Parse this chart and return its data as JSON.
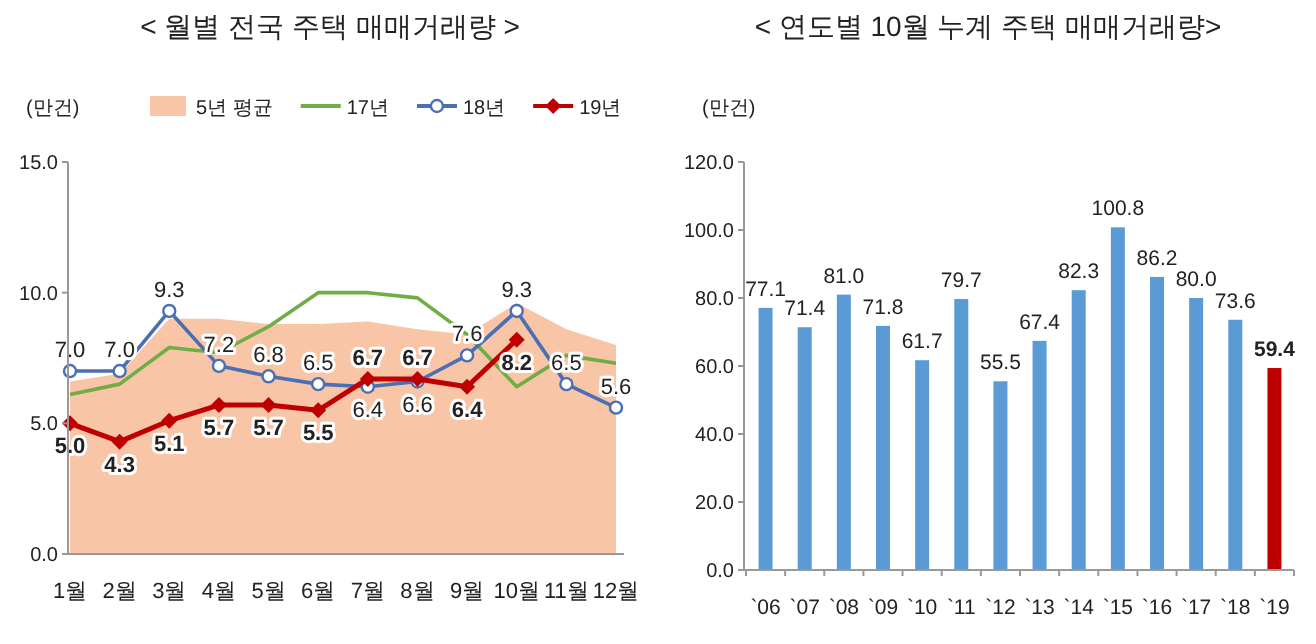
{
  "chart_data": [
    {
      "type": "line",
      "title": "< 월별 전국 주택 매매거래량 >",
      "ylabel": "(만건)",
      "categories": [
        "1월",
        "2월",
        "3월",
        "4월",
        "5월",
        "6월",
        "7월",
        "8월",
        "9월",
        "10월",
        "11월",
        "12월"
      ],
      "ylim": [
        0,
        15
      ],
      "yticks": [
        {
          "value": 0,
          "label": "0.0"
        },
        {
          "value": 5,
          "label": "5.0"
        },
        {
          "value": 10,
          "label": "10.0"
        },
        {
          "value": 15,
          "label": "15.0"
        }
      ],
      "legend": "top",
      "series": [
        {
          "name": "5년 평균",
          "type": "area",
          "color": "#f8c6a6",
          "values": [
            6.6,
            6.9,
            9.0,
            9.0,
            8.8,
            8.8,
            8.9,
            8.6,
            8.4,
            9.6,
            8.6,
            8.0
          ]
        },
        {
          "name": "17년",
          "type": "line",
          "color": "#70ad47",
          "marker": "none",
          "values": [
            6.1,
            6.5,
            7.9,
            7.7,
            8.7,
            10.0,
            10.0,
            9.8,
            8.4,
            6.4,
            7.6,
            7.3
          ]
        },
        {
          "name": "18년",
          "type": "line",
          "color": "#4a6fb5",
          "marker": "circle",
          "values": [
            7.0,
            7.0,
            9.3,
            7.2,
            6.8,
            6.5,
            6.4,
            6.6,
            7.6,
            9.3,
            6.5,
            5.6
          ],
          "value_labels": [
            "7.0",
            "7.0",
            "9.3",
            "7.2",
            "6.8",
            "6.5",
            "6.4",
            "6.6",
            "7.6",
            "9.3",
            "6.5",
            "5.6"
          ]
        },
        {
          "name": "19년",
          "type": "line",
          "color": "#c00000",
          "marker": "diamond",
          "values": [
            5.0,
            4.3,
            5.1,
            5.7,
            5.7,
            5.5,
            6.7,
            6.7,
            6.4,
            8.2,
            null,
            null
          ],
          "value_labels": [
            "**5.0**",
            "**4.3**",
            "**5.1**",
            "**5.7**",
            "**5.7**",
            "**5.5**",
            "**6.7**",
            "**6.7**",
            "**6.4**",
            "**8.2**",
            null,
            null
          ]
        }
      ]
    },
    {
      "type": "bar",
      "title": "< 연도별 10월 누계 주택 매매거래량>",
      "ylabel": "(만건)",
      "categories": [
        "`06",
        "`07",
        "`08",
        "`09",
        "`10",
        "`11",
        "`12",
        "`13",
        "`14",
        "`15",
        "`16",
        "`17",
        "`18",
        "`19"
      ],
      "ylim": [
        0,
        120
      ],
      "yticks": [
        {
          "value": 0,
          "label": "0.0"
        },
        {
          "value": 20,
          "label": "20.0"
        },
        {
          "value": 40,
          "label": "40.0"
        },
        {
          "value": 60,
          "label": "60.0"
        },
        {
          "value": 80,
          "label": "80.0"
        },
        {
          "value": 100,
          "label": "100.0"
        },
        {
          "value": 120,
          "label": "120.0"
        }
      ],
      "value_labels": [
        "77.1",
        "71.4",
        "81.0",
        "71.8",
        "61.7",
        "79.7",
        "55.5",
        "67.4",
        "82.3",
        "100.8",
        "86.2",
        "80.0",
        "73.6",
        "**59.4**"
      ],
      "values": [
        77.1,
        71.4,
        81.0,
        71.8,
        61.7,
        79.7,
        55.5,
        67.4,
        82.3,
        100.8,
        86.2,
        80.0,
        73.6,
        59.4
      ],
      "colors": [
        "#5b9bd5",
        "#5b9bd5",
        "#5b9bd5",
        "#5b9bd5",
        "#5b9bd5",
        "#5b9bd5",
        "#5b9bd5",
        "#5b9bd5",
        "#5b9bd5",
        "#5b9bd5",
        "#5b9bd5",
        "#5b9bd5",
        "#5b9bd5",
        "#c00000"
      ]
    }
  ]
}
